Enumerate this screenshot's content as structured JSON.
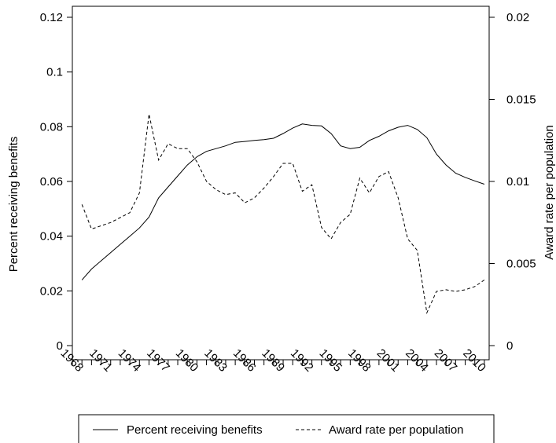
{
  "chart_data": {
    "type": "line",
    "x": [
      1969,
      1970,
      1971,
      1972,
      1973,
      1974,
      1975,
      1976,
      1977,
      1978,
      1979,
      1980,
      1981,
      1982,
      1983,
      1984,
      1985,
      1986,
      1987,
      1988,
      1989,
      1990,
      1991,
      1992,
      1993,
      1994,
      1995,
      1996,
      1997,
      1998,
      1999,
      2000,
      2001,
      2002,
      2003,
      2004,
      2005,
      2006,
      2007,
      2008,
      2009,
      2010,
      2011
    ],
    "x_ticks": [
      "1968",
      "1971",
      "1974",
      "1977",
      "1980",
      "1983",
      "1986",
      "1989",
      "1992",
      "1995",
      "1998",
      "2001",
      "2004",
      "2007",
      "2010"
    ],
    "xlim": [
      1968,
      2011.5
    ],
    "ylabel_left": "Percent receiving benefits",
    "ylabel_right": "Award rate per population",
    "ylim_left": [
      0,
      0.12
    ],
    "ylim_right": [
      0,
      0.02
    ],
    "y_ticks_left": [
      "0",
      "0.02",
      "0.04",
      "0.06",
      "0.08",
      "0.1",
      "0.12"
    ],
    "y_ticks_right": [
      "0",
      "0.005",
      "0.01",
      "0.015",
      "0.02"
    ],
    "legend_position": "bottom",
    "grid": false,
    "series": [
      {
        "name": "Percent receiving benefits",
        "axis": "left",
        "style": "solid",
        "color": "#000000",
        "values": [
          0.024,
          0.028,
          0.031,
          0.034,
          0.037,
          0.04,
          0.043,
          0.047,
          0.054,
          0.058,
          0.062,
          0.066,
          0.069,
          0.071,
          0.072,
          0.073,
          0.0743,
          0.0746,
          0.075,
          0.0753,
          0.0758,
          0.0775,
          0.0795,
          0.081,
          0.0805,
          0.0803,
          0.0775,
          0.073,
          0.072,
          0.0725,
          0.075,
          0.0765,
          0.0785,
          0.0798,
          0.0805,
          0.079,
          0.076,
          0.07,
          0.066,
          0.063,
          0.0615,
          0.0602,
          0.059
        ]
      },
      {
        "name": "Award rate per population",
        "axis": "right",
        "style": "dashed",
        "color": "#000000",
        "values": [
          0.0086,
          0.0071,
          0.0073,
          0.0075,
          0.0078,
          0.0081,
          0.0093,
          0.0141,
          0.0113,
          0.0123,
          0.012,
          0.012,
          0.0112,
          0.01,
          0.0095,
          0.0092,
          0.0093,
          0.0087,
          0.009,
          0.0096,
          0.0103,
          0.0111,
          0.0111,
          0.0094,
          0.0098,
          0.0072,
          0.0065,
          0.0075,
          0.008,
          0.0102,
          0.0093,
          0.0103,
          0.0106,
          0.009,
          0.0065,
          0.0058,
          0.002,
          0.0033,
          0.0034,
          0.0033,
          0.0034,
          0.0036,
          0.004
        ]
      }
    ]
  }
}
